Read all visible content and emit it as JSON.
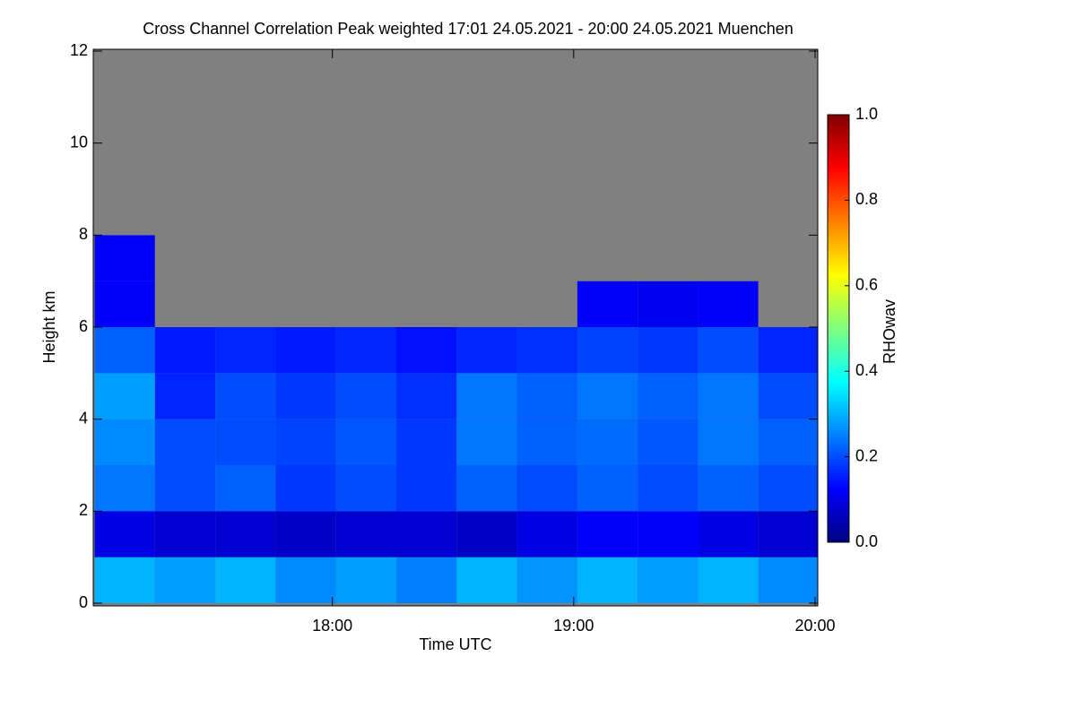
{
  "chart_data": {
    "type": "heatmap",
    "title": "Cross Channel Correlation Peak weighted   17:01 24.05.2021 - 20:00 24.05.2021 Muenchen",
    "x_label": "Time UTC",
    "y_label": "Height km",
    "colorbar_label": "RHOwav",
    "x": [
      17.14,
      17.39,
      17.64,
      17.89,
      18.14,
      18.39,
      18.64,
      18.89,
      19.14,
      19.39,
      19.64,
      19.89
    ],
    "y": [
      0.5,
      1.5,
      2.5,
      3.5,
      4.5,
      5.5,
      6.5,
      7.5,
      8.5,
      9.5,
      10.5,
      11.5
    ],
    "z": [
      [
        0.3,
        0.28,
        0.3,
        0.26,
        0.28,
        0.25,
        0.3,
        0.27,
        0.3,
        0.28,
        0.3,
        0.26
      ],
      [
        0.1,
        0.08,
        0.08,
        0.07,
        0.08,
        0.08,
        0.07,
        0.1,
        0.12,
        0.12,
        0.1,
        0.08
      ],
      [
        0.24,
        0.2,
        0.22,
        0.18,
        0.2,
        0.18,
        0.22,
        0.2,
        0.22,
        0.2,
        0.22,
        0.2
      ],
      [
        0.26,
        0.2,
        0.2,
        0.19,
        0.21,
        0.18,
        0.24,
        0.22,
        0.23,
        0.21,
        0.24,
        0.22
      ],
      [
        0.28,
        0.16,
        0.2,
        0.18,
        0.2,
        0.17,
        0.24,
        0.22,
        0.24,
        0.22,
        0.24,
        0.2
      ],
      [
        0.22,
        0.15,
        0.16,
        0.15,
        0.16,
        0.14,
        0.16,
        0.17,
        0.19,
        0.18,
        0.2,
        0.16
      ],
      [
        0.12,
        null,
        null,
        null,
        null,
        null,
        null,
        null,
        0.12,
        0.11,
        0.12,
        null
      ],
      [
        0.12,
        null,
        null,
        null,
        null,
        null,
        null,
        null,
        null,
        null,
        null,
        null
      ],
      [
        null,
        null,
        null,
        null,
        null,
        null,
        null,
        null,
        null,
        null,
        null,
        null
      ],
      [
        null,
        null,
        null,
        null,
        null,
        null,
        null,
        null,
        null,
        null,
        null,
        null
      ],
      [
        null,
        null,
        null,
        null,
        null,
        null,
        null,
        null,
        null,
        null,
        null,
        null
      ],
      [
        null,
        null,
        null,
        null,
        null,
        null,
        null,
        null,
        null,
        null,
        null,
        null
      ]
    ],
    "null_color": "#808080",
    "colormap": [
      "#00007f",
      "#0000ff",
      "#0080ff",
      "#00ffff",
      "#80ff80",
      "#ffff00",
      "#ff8000",
      "#ff0000",
      "#7f0000"
    ],
    "xlim": [
      17.0167,
      20.0
    ],
    "xticks": [
      {
        "value": 18,
        "label": "18:00"
      },
      {
        "value": 19,
        "label": "19:00"
      },
      {
        "value": 20,
        "label": "20:00"
      }
    ],
    "ylim": [
      0,
      12
    ],
    "yticks": [
      0,
      2,
      4,
      6,
      8,
      10,
      12
    ],
    "zlim": [
      0,
      1
    ],
    "zticks": [
      {
        "value": 0,
        "label": "0.0"
      },
      {
        "value": 0.2,
        "label": "0.2"
      },
      {
        "value": 0.4,
        "label": "0.4"
      },
      {
        "value": 0.6,
        "label": "0.6"
      },
      {
        "value": 0.8,
        "label": "0.8"
      },
      {
        "value": 1,
        "label": "1.0"
      }
    ]
  }
}
